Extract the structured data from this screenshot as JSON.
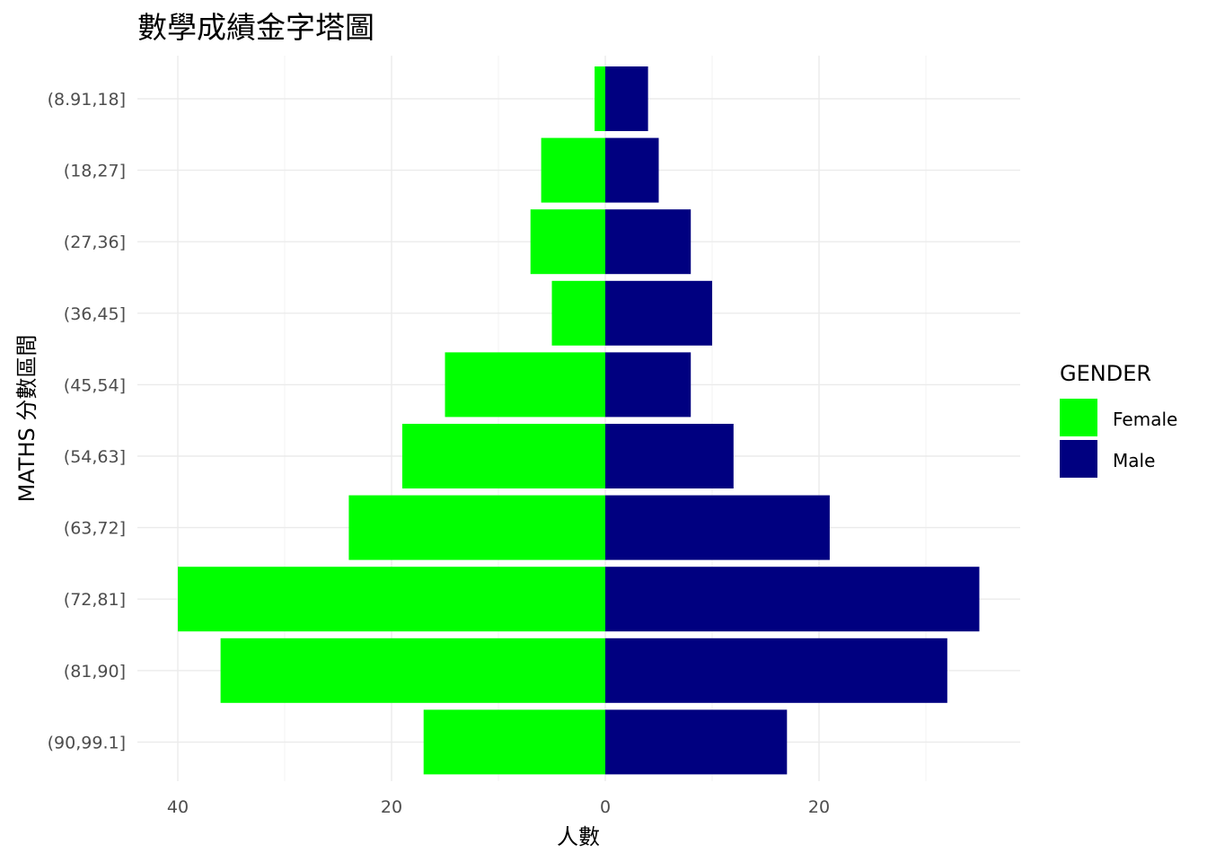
{
  "chart_data": {
    "type": "bar",
    "orientation": "horizontal-pyramid",
    "title": "數學成績金字塔圖",
    "xlabel": "人數",
    "ylabel": "MATHS 分數區間",
    "categories": [
      "(8.91,18]",
      "(18,27]",
      "(27,36]",
      "(36,45]",
      "(45,54]",
      "(54,63]",
      "(63,72]",
      "(72,81]",
      "(81,90]",
      "(90,99.1]"
    ],
    "series": [
      {
        "name": "Female",
        "color": "#00FF00",
        "values": [
          1,
          6,
          7,
          5,
          15,
          19,
          24,
          40,
          36,
          17
        ]
      },
      {
        "name": "Male",
        "color": "#000080",
        "values": [
          4,
          5,
          8,
          10,
          8,
          12,
          21,
          35,
          32,
          17
        ]
      }
    ],
    "xticks": [
      {
        "value": -40,
        "label": "40"
      },
      {
        "value": -20,
        "label": "20"
      },
      {
        "value": 0,
        "label": "0"
      },
      {
        "value": 20,
        "label": "20"
      }
    ],
    "xlim": [
      -40,
      35
    ],
    "legend": {
      "title": "GENDER",
      "position": "right"
    },
    "grid": true
  }
}
